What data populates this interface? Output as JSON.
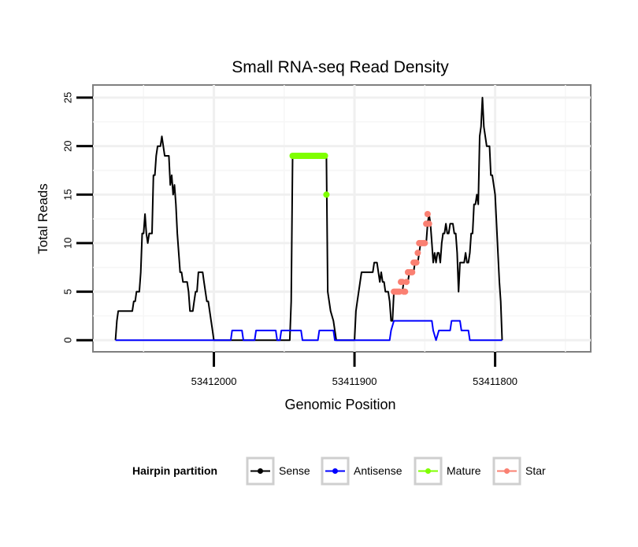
{
  "chart_data": {
    "type": "line",
    "title": "Small RNA-seq Read Density",
    "xlabel": "Genomic Position",
    "ylabel": "Total Reads",
    "x_reversed": true,
    "xlim": [
      53412086,
      53411732
    ],
    "ylim": [
      -1.2,
      26.3
    ],
    "y_ticks": [
      0,
      5,
      10,
      15,
      20,
      25
    ],
    "x_ticks": [
      53412000,
      53411900,
      53411800
    ],
    "x_tick_labels": [
      "53412000",
      "53411900",
      "53411800"
    ],
    "grid": true,
    "legend": {
      "title": "Hairpin partition",
      "placement": "bottom",
      "entries": [
        {
          "name": "Sense",
          "color": "#000000"
        },
        {
          "name": "Antisense",
          "color": "#0000ff"
        },
        {
          "name": "Mature",
          "color": "#7fff00"
        },
        {
          "name": "Star",
          "color": "#fa8072"
        }
      ]
    },
    "series": [
      {
        "name": "Sense",
        "color": "#000000",
        "points": [
          [
            53412070,
            0
          ],
          [
            53412069,
            2
          ],
          [
            53412068,
            3
          ],
          [
            53412065,
            3
          ],
          [
            53412062,
            3
          ],
          [
            53412058,
            3
          ],
          [
            53412057,
            4
          ],
          [
            53412056,
            4
          ],
          [
            53412055,
            5
          ],
          [
            53412053,
            5
          ],
          [
            53412052,
            7
          ],
          [
            53412051,
            11
          ],
          [
            53412050,
            11
          ],
          [
            53412049,
            13
          ],
          [
            53412048,
            11
          ],
          [
            53412047,
            10
          ],
          [
            53412046,
            11
          ],
          [
            53412044,
            11
          ],
          [
            53412043,
            17
          ],
          [
            53412042,
            17
          ],
          [
            53412041,
            19
          ],
          [
            53412040,
            20
          ],
          [
            53412038,
            20
          ],
          [
            53412037,
            21
          ],
          [
            53412036,
            20
          ],
          [
            53412035,
            19
          ],
          [
            53412033,
            19
          ],
          [
            53412032,
            19
          ],
          [
            53412031,
            16
          ],
          [
            53412030,
            17
          ],
          [
            53412029,
            15
          ],
          [
            53412028,
            16
          ],
          [
            53412027,
            14
          ],
          [
            53412026,
            11
          ],
          [
            53412025,
            9
          ],
          [
            53412024,
            7
          ],
          [
            53412023,
            7
          ],
          [
            53412022,
            6
          ],
          [
            53412020,
            6
          ],
          [
            53412019,
            6
          ],
          [
            53412018,
            5
          ],
          [
            53412017,
            3
          ],
          [
            53412015,
            3
          ],
          [
            53412014,
            4
          ],
          [
            53412013,
            5
          ],
          [
            53412012,
            5
          ],
          [
            53412011,
            7
          ],
          [
            53412008,
            7
          ],
          [
            53412007,
            6
          ],
          [
            53412006,
            5
          ],
          [
            53412005,
            4
          ],
          [
            53412004,
            4
          ],
          [
            53412003,
            3
          ],
          [
            53412002,
            2
          ],
          [
            53412001,
            1
          ],
          [
            53412000,
            0
          ],
          [
            53411995,
            0
          ],
          [
            53411990,
            0
          ],
          [
            53411985,
            0
          ],
          [
            53411980,
            0
          ],
          [
            53411975,
            0
          ],
          [
            53411970,
            0
          ],
          [
            53411965,
            0
          ],
          [
            53411960,
            0
          ],
          [
            53411955,
            0
          ],
          [
            53411950,
            0
          ],
          [
            53411946,
            0
          ],
          [
            53411945,
            4
          ],
          [
            53411944,
            19
          ],
          [
            53411943,
            19
          ],
          [
            53411920,
            19
          ],
          [
            53411919,
            5
          ],
          [
            53411917,
            3
          ],
          [
            53411915,
            2
          ],
          [
            53411913,
            0
          ],
          [
            53411905,
            0
          ],
          [
            53411900,
            0
          ],
          [
            53411899,
            3
          ],
          [
            53411898,
            4
          ],
          [
            53411897,
            5
          ],
          [
            53411896,
            6
          ],
          [
            53411895,
            7
          ],
          [
            53411887,
            7
          ],
          [
            53411886,
            8
          ],
          [
            53411884,
            8
          ],
          [
            53411883,
            7
          ],
          [
            53411882,
            6
          ],
          [
            53411881,
            7
          ],
          [
            53411880,
            6
          ],
          [
            53411879,
            6
          ],
          [
            53411878,
            5
          ],
          [
            53411876,
            5
          ],
          [
            53411875,
            4
          ],
          [
            53411874,
            2
          ],
          [
            53411873,
            2
          ],
          [
            53411872,
            5
          ],
          [
            53411871,
            5
          ],
          [
            53411866,
            5
          ],
          [
            53411865,
            6
          ],
          [
            53411862,
            6
          ],
          [
            53411861,
            7
          ],
          [
            53411858,
            7
          ],
          [
            53411857,
            8
          ],
          [
            53411855,
            8
          ],
          [
            53411854,
            9
          ],
          [
            53411853,
            10
          ],
          [
            53411849,
            10
          ],
          [
            53411848,
            12
          ],
          [
            53411847,
            13
          ],
          [
            53411846,
            12
          ],
          [
            53411845,
            10
          ],
          [
            53411844,
            8
          ],
          [
            53411843,
            9
          ],
          [
            53411842,
            8
          ],
          [
            53411841,
            9
          ],
          [
            53411840,
            9
          ],
          [
            53411839,
            8
          ],
          [
            53411838,
            10
          ],
          [
            53411837,
            11
          ],
          [
            53411836,
            11
          ],
          [
            53411835,
            12
          ],
          [
            53411834,
            11
          ],
          [
            53411833,
            11
          ],
          [
            53411832,
            12
          ],
          [
            53411830,
            12
          ],
          [
            53411829,
            11
          ],
          [
            53411828,
            11
          ],
          [
            53411827,
            9
          ],
          [
            53411826,
            5
          ],
          [
            53411825,
            8
          ],
          [
            53411823,
            8
          ],
          [
            53411822,
            8
          ],
          [
            53411821,
            9
          ],
          [
            53411820,
            8
          ],
          [
            53411819,
            8
          ],
          [
            53411818,
            9
          ],
          [
            53411817,
            11
          ],
          [
            53411816,
            11
          ],
          [
            53411815,
            14
          ],
          [
            53411814,
            14
          ],
          [
            53411813,
            15
          ],
          [
            53411812,
            14
          ],
          [
            53411811,
            21
          ],
          [
            53411810,
            22
          ],
          [
            53411809,
            25
          ],
          [
            53411808,
            22
          ],
          [
            53411807,
            21
          ],
          [
            53411806,
            20
          ],
          [
            53411805,
            20
          ],
          [
            53411804,
            20
          ],
          [
            53411803,
            17
          ],
          [
            53411802,
            17
          ],
          [
            53411801,
            16
          ],
          [
            53411800,
            15
          ],
          [
            53411799,
            12
          ],
          [
            53411798,
            9
          ],
          [
            53411797,
            6
          ],
          [
            53411796,
            4
          ],
          [
            53411795,
            0
          ]
        ]
      },
      {
        "name": "Antisense",
        "color": "#0000ff",
        "points": [
          [
            53412070,
            0
          ],
          [
            53411988,
            0
          ],
          [
            53411987,
            1
          ],
          [
            53411980,
            1
          ],
          [
            53411979,
            0
          ],
          [
            53411971,
            0
          ],
          [
            53411970,
            1
          ],
          [
            53411956,
            1
          ],
          [
            53411955,
            0
          ],
          [
            53411953,
            0
          ],
          [
            53411952,
            1
          ],
          [
            53411938,
            1
          ],
          [
            53411937,
            0
          ],
          [
            53411926,
            0
          ],
          [
            53411925,
            1
          ],
          [
            53411915,
            1
          ],
          [
            53411914,
            0
          ],
          [
            53411900,
            0
          ],
          [
            53411875,
            0
          ],
          [
            53411874,
            1
          ],
          [
            53411872,
            2
          ],
          [
            53411845,
            2
          ],
          [
            53411844,
            1
          ],
          [
            53411842,
            0
          ],
          [
            53411840,
            1
          ],
          [
            53411832,
            1
          ],
          [
            53411831,
            2
          ],
          [
            53411825,
            2
          ],
          [
            53411824,
            1
          ],
          [
            53411819,
            1
          ],
          [
            53411818,
            0
          ],
          [
            53411795,
            0
          ]
        ]
      },
      {
        "name": "Mature",
        "color": "#7fff00",
        "marker_x": [
          53411944,
          53411943,
          53411942,
          53411941,
          53411940,
          53411939,
          53411938,
          53411937,
          53411936,
          53411935,
          53411934,
          53411933,
          53411932,
          53411931,
          53411930,
          53411929,
          53411928,
          53411927,
          53411926,
          53411925,
          53411924,
          53411923,
          53411922,
          53411921,
          53411920
        ],
        "marker_y": [
          19,
          19,
          19,
          19,
          19,
          19,
          19,
          19,
          19,
          19,
          19,
          19,
          19,
          19,
          19,
          19,
          19,
          19,
          19,
          19,
          19,
          19,
          19,
          19,
          15
        ]
      },
      {
        "name": "Star",
        "color": "#fa8072",
        "marker_x": [
          53411872,
          53411871,
          53411870,
          53411869,
          53411868,
          53411867,
          53411866,
          53411865,
          53411864,
          53411863,
          53411862,
          53411861,
          53411860,
          53411859,
          53411858,
          53411857,
          53411856,
          53411855,
          53411854,
          53411853,
          53411852,
          53411851,
          53411850,
          53411849,
          53411848,
          53411847
        ],
        "marker_y": [
          5,
          5,
          5,
          5,
          5,
          6,
          6,
          5,
          5,
          6,
          7,
          7,
          7,
          7,
          8,
          8,
          8,
          9,
          10,
          10,
          10,
          10,
          10,
          12,
          13,
          12
        ]
      }
    ]
  }
}
